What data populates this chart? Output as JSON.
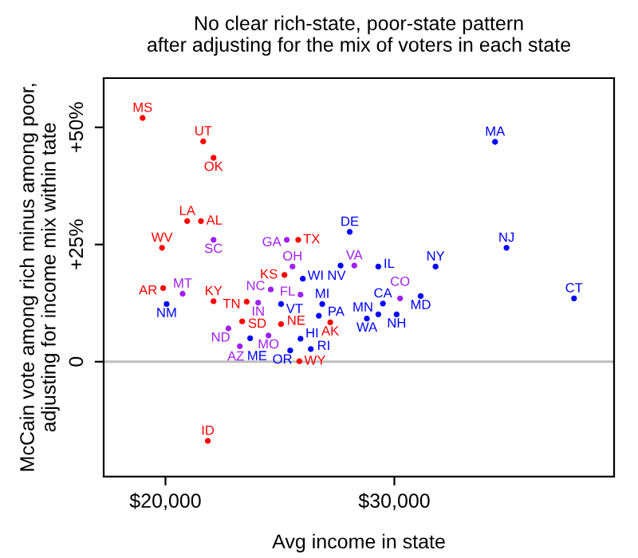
{
  "chart_data": {
    "type": "scatter",
    "title": "No clear rich-state, poor-state pattern\nafter adjusting for the mix of voters in each state",
    "xlabel": "Avg income in state",
    "ylabel": "McCain vote among rich minus among poor,\nadjusting for income mix within tate",
    "xlim": [
      17300,
      39600
    ],
    "ylim": [
      -24.5,
      60.5
    ],
    "xticks": [
      {
        "value": 20000,
        "label": "$20,000"
      },
      {
        "value": 30000,
        "label": "$30,000"
      }
    ],
    "yticks": [
      0,
      {
        "value": 25,
        "label": "+25%"
      },
      {
        "value": 50,
        "label": "+50%"
      }
    ],
    "ref_lines": [
      {
        "axis": "y",
        "value": 0,
        "color": "#bebebe"
      }
    ],
    "grid": false,
    "legend": false,
    "marker": "circle",
    "series": [
      {
        "name": "MS",
        "color": "#ff0000",
        "x": [
          19000
        ],
        "values": [
          52
        ]
      },
      {
        "name": "UT",
        "color": "#ff0000",
        "x": [
          21650
        ],
        "values": [
          47
        ]
      },
      {
        "name": "OK",
        "color": "#ff0000",
        "x": [
          22100
        ],
        "values": [
          43.5
        ]
      },
      {
        "name": "LA",
        "color": "#ff0000",
        "x": [
          20950
        ],
        "values": [
          30
        ]
      },
      {
        "name": "AL",
        "color": "#ff0000",
        "x": [
          21550
        ],
        "values": [
          30
        ]
      },
      {
        "name": "SC",
        "color": "#a020f0",
        "x": [
          22100
        ],
        "values": [
          26
        ]
      },
      {
        "name": "WV",
        "color": "#ff0000",
        "x": [
          19850
        ],
        "values": [
          24.3
        ]
      },
      {
        "name": "AR",
        "color": "#ff0000",
        "x": [
          19900
        ],
        "values": [
          15.7
        ]
      },
      {
        "name": "NM",
        "color": "#0000ff",
        "x": [
          20050
        ],
        "values": [
          12.3
        ]
      },
      {
        "name": "MT",
        "color": "#a020f0",
        "x": [
          20750
        ],
        "values": [
          14.5
        ]
      },
      {
        "name": "KY",
        "color": "#ff0000",
        "x": [
          22100
        ],
        "values": [
          12.9
        ]
      },
      {
        "name": "TN",
        "color": "#ff0000",
        "x": [
          23550
        ],
        "values": [
          12.8
        ]
      },
      {
        "name": "IN",
        "color": "#a020f0",
        "x": [
          24050
        ],
        "values": [
          12.6
        ]
      },
      {
        "name": "VT",
        "color": "#0000ff",
        "x": [
          25050
        ],
        "values": [
          12.3
        ]
      },
      {
        "name": "SD",
        "color": "#ff0000",
        "x": [
          23350
        ],
        "values": [
          8.6
        ]
      },
      {
        "name": "ND",
        "color": "#a020f0",
        "x": [
          22750
        ],
        "values": [
          7.1
        ]
      },
      {
        "name": "NE",
        "color": "#ff0000",
        "x": [
          25050
        ],
        "values": [
          8
        ]
      },
      {
        "name": "ME",
        "color": "#0000ff",
        "x": [
          23700
        ],
        "values": [
          5
        ]
      },
      {
        "name": "MO",
        "color": "#a020f0",
        "x": [
          24500
        ],
        "values": [
          5.6
        ]
      },
      {
        "name": "AZ",
        "color": "#a020f0",
        "x": [
          23250
        ],
        "values": [
          3.3
        ]
      },
      {
        "name": "HI",
        "color": "#0000ff",
        "x": [
          25900
        ],
        "values": [
          4.9
        ]
      },
      {
        "name": "OR",
        "color": "#0000ff",
        "x": [
          25450
        ],
        "values": [
          2.4
        ]
      },
      {
        "name": "RI",
        "color": "#0000ff",
        "x": [
          26350
        ],
        "values": [
          2.7
        ]
      },
      {
        "name": "WY",
        "color": "#ff0000",
        "x": [
          25850
        ],
        "values": [
          0.1
        ]
      },
      {
        "name": "OH",
        "color": "#a020f0",
        "x": [
          25550
        ],
        "values": [
          20.3
        ]
      },
      {
        "name": "KS",
        "color": "#ff0000",
        "x": [
          25200
        ],
        "values": [
          18.5
        ]
      },
      {
        "name": "WI",
        "color": "#0000ff",
        "x": [
          26000
        ],
        "values": [
          17.7
        ]
      },
      {
        "name": "NC",
        "color": "#a020f0",
        "x": [
          24600
        ],
        "values": [
          15.4
        ]
      },
      {
        "name": "FL",
        "color": "#a020f0",
        "x": [
          25900
        ],
        "values": [
          14.3
        ]
      },
      {
        "name": "GA",
        "color": "#a020f0",
        "x": [
          25300
        ],
        "values": [
          26
        ]
      },
      {
        "name": "TX",
        "color": "#ff0000",
        "x": [
          25800
        ],
        "values": [
          26
        ]
      },
      {
        "name": "DE",
        "color": "#0000ff",
        "x": [
          28050
        ],
        "values": [
          27.7
        ]
      },
      {
        "name": "NV",
        "color": "#0000ff",
        "x": [
          27650
        ],
        "values": [
          20.5
        ]
      },
      {
        "name": "VA",
        "color": "#a020f0",
        "x": [
          28250
        ],
        "values": [
          20.5
        ]
      },
      {
        "name": "IL",
        "color": "#0000ff",
        "x": [
          29300
        ],
        "values": [
          20.3
        ]
      },
      {
        "name": "NY",
        "color": "#0000ff",
        "x": [
          31800
        ],
        "values": [
          20.3
        ]
      },
      {
        "name": "MI",
        "color": "#0000ff",
        "x": [
          26850
        ],
        "values": [
          12.3
        ]
      },
      {
        "name": "PA",
        "color": "#0000ff",
        "x": [
          26700
        ],
        "values": [
          9.8
        ]
      },
      {
        "name": "AK",
        "color": "#ff0000",
        "x": [
          27200
        ],
        "values": [
          8.4
        ]
      },
      {
        "name": "WA",
        "color": "#0000ff",
        "x": [
          28800
        ],
        "values": [
          9.2
        ]
      },
      {
        "name": "MN",
        "color": "#0000ff",
        "x": [
          29300
        ],
        "values": [
          10.1
        ]
      },
      {
        "name": "NH",
        "color": "#0000ff",
        "x": [
          30100
        ],
        "values": [
          10.1
        ]
      },
      {
        "name": "CA",
        "color": "#0000ff",
        "x": [
          29500
        ],
        "values": [
          12.4
        ]
      },
      {
        "name": "CO",
        "color": "#a020f0",
        "x": [
          30250
        ],
        "values": [
          13.5
        ]
      },
      {
        "name": "MD",
        "color": "#0000ff",
        "x": [
          31150
        ],
        "values": [
          14
        ]
      },
      {
        "name": "CT",
        "color": "#0000ff",
        "x": [
          37850
        ],
        "values": [
          13.5
        ]
      },
      {
        "name": "NJ",
        "color": "#0000ff",
        "x": [
          34900
        ],
        "values": [
          24.3
        ]
      },
      {
        "name": "MA",
        "color": "#0000ff",
        "x": [
          34400
        ],
        "values": [
          46.9
        ]
      },
      {
        "name": "ID",
        "color": "#ff0000",
        "x": [
          21850
        ],
        "values": [
          -16.9
        ]
      }
    ]
  }
}
